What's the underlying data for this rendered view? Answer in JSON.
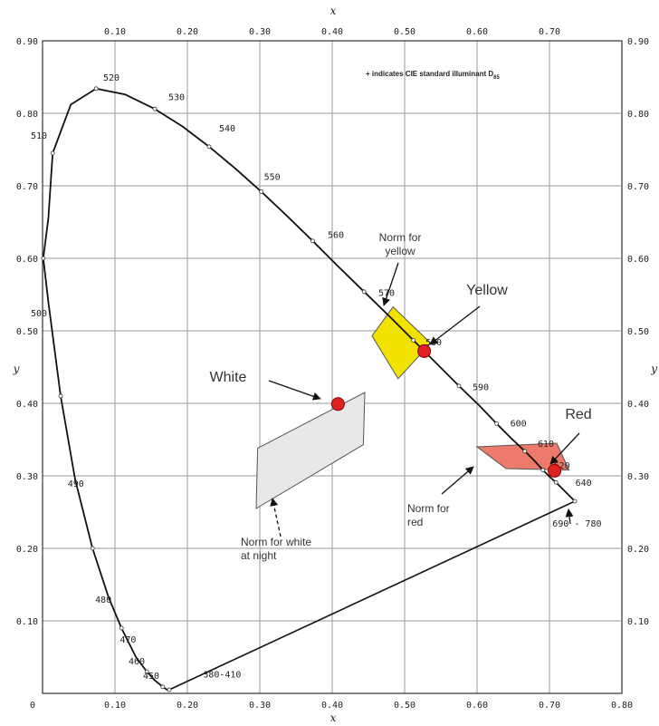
{
  "chart_data": {
    "type": "scatter",
    "xlabel": "x",
    "ylabel": "y",
    "xlim": [
      0,
      0.8
    ],
    "ylim": [
      0,
      0.9
    ],
    "grid": true,
    "x_ticks": [
      "0",
      "0.10",
      "0.20",
      "0.30",
      "0.40",
      "0.50",
      "0.60",
      "0.70",
      "0.80"
    ],
    "x_tick_values": [
      0,
      0.1,
      0.2,
      0.3,
      0.4,
      0.5,
      0.6,
      0.7,
      0.8
    ],
    "y_ticks": [
      "0.10",
      "0.20",
      "0.30",
      "0.40",
      "0.50",
      "0.60",
      "0.70",
      "0.80",
      "0.90"
    ],
    "y_tick_values": [
      0.1,
      0.2,
      0.3,
      0.4,
      0.5,
      0.6,
      0.7,
      0.8,
      0.9
    ],
    "note": "+ indicates CIE standard illuminant D",
    "note_sub": "65",
    "spectral_locus": [
      [
        0.175,
        0.005
      ],
      [
        0.172,
        0.005
      ],
      [
        0.166,
        0.009
      ],
      [
        0.155,
        0.018
      ],
      [
        0.144,
        0.03
      ],
      [
        0.129,
        0.05
      ],
      [
        0.109,
        0.09
      ],
      [
        0.091,
        0.133
      ],
      [
        0.069,
        0.2
      ],
      [
        0.045,
        0.295
      ],
      [
        0.025,
        0.41
      ],
      [
        0.008,
        0.54
      ],
      [
        0.001,
        0.6
      ],
      [
        0.008,
        0.655
      ],
      [
        0.014,
        0.745
      ],
      [
        0.039,
        0.812
      ],
      [
        0.074,
        0.834
      ],
      [
        0.114,
        0.826
      ],
      [
        0.155,
        0.806
      ],
      [
        0.193,
        0.782
      ],
      [
        0.23,
        0.754
      ],
      [
        0.266,
        0.724
      ],
      [
        0.302,
        0.692
      ],
      [
        0.337,
        0.659
      ],
      [
        0.373,
        0.624
      ],
      [
        0.408,
        0.589
      ],
      [
        0.444,
        0.554
      ],
      [
        0.479,
        0.52
      ],
      [
        0.512,
        0.487
      ],
      [
        0.545,
        0.454
      ],
      [
        0.575,
        0.424
      ],
      [
        0.603,
        0.397
      ],
      [
        0.627,
        0.372
      ],
      [
        0.648,
        0.351
      ],
      [
        0.666,
        0.334
      ],
      [
        0.68,
        0.32
      ],
      [
        0.691,
        0.308
      ],
      [
        0.701,
        0.298
      ],
      [
        0.709,
        0.291
      ],
      [
        0.715,
        0.285
      ],
      [
        0.735,
        0.265
      ]
    ],
    "wavelength_labels": [
      {
        "text": "520",
        "x": 0.095,
        "y": 0.845
      },
      {
        "text": "530",
        "x": 0.185,
        "y": 0.818
      },
      {
        "text": "540",
        "x": 0.255,
        "y": 0.775
      },
      {
        "text": "550",
        "x": 0.317,
        "y": 0.708
      },
      {
        "text": "560",
        "x": 0.405,
        "y": 0.628
      },
      {
        "text": "570",
        "x": 0.475,
        "y": 0.548
      },
      {
        "text": "580",
        "x": 0.54,
        "y": 0.48
      },
      {
        "text": "590",
        "x": 0.605,
        "y": 0.418
      },
      {
        "text": "600",
        "x": 0.657,
        "y": 0.368
      },
      {
        "text": "610",
        "x": 0.695,
        "y": 0.34
      },
      {
        "text": "620",
        "x": 0.717,
        "y": 0.31
      },
      {
        "text": "640",
        "x": 0.747,
        "y": 0.286
      },
      {
        "text": "510",
        "x": -0.005,
        "y": 0.765
      },
      {
        "text": "500",
        "x": -0.005,
        "y": 0.52
      },
      {
        "text": "490",
        "x": 0.046,
        "y": 0.285
      },
      {
        "text": "480",
        "x": 0.084,
        "y": 0.125
      },
      {
        "text": "470",
        "x": 0.118,
        "y": 0.07
      },
      {
        "text": "460",
        "x": 0.13,
        "y": 0.04
      },
      {
        "text": "450",
        "x": 0.15,
        "y": 0.02
      },
      {
        "text": "380-410",
        "x": 0.248,
        "y": 0.022
      },
      {
        "text": "690 - 780",
        "x": 0.738,
        "y": 0.23
      }
    ],
    "regions": [
      {
        "name": "yellow",
        "color": "#f2e200",
        "points": [
          [
            0.455,
            0.493
          ],
          [
            0.484,
            0.533
          ],
          [
            0.536,
            0.483
          ],
          [
            0.491,
            0.434
          ]
        ]
      },
      {
        "name": "white",
        "color": "#e8e8e8",
        "points": [
          [
            0.297,
            0.338
          ],
          [
            0.295,
            0.255
          ],
          [
            0.443,
            0.343
          ],
          [
            0.445,
            0.415
          ]
        ]
      },
      {
        "name": "red",
        "color": "#ec7b6b",
        "points": [
          [
            0.6,
            0.34
          ],
          [
            0.71,
            0.345
          ],
          [
            0.727,
            0.308
          ],
          [
            0.64,
            0.31
          ]
        ]
      }
    ],
    "points": [
      {
        "name": "Yellow",
        "x": 0.527,
        "y": 0.472,
        "color": "#dd2222"
      },
      {
        "name": "White",
        "x": 0.408,
        "y": 0.399,
        "color": "#dd2222"
      },
      {
        "name": "Red",
        "x": 0.707,
        "y": 0.307,
        "color": "#dd2222"
      }
    ],
    "annotations": [
      {
        "key": "norm_yellow",
        "lines": [
          "Norm for",
          "yellow"
        ]
      },
      {
        "key": "yellow",
        "lines": [
          "Yellow"
        ]
      },
      {
        "key": "white",
        "lines": [
          "White"
        ]
      },
      {
        "key": "red",
        "lines": [
          "Red"
        ]
      },
      {
        "key": "norm_red",
        "lines": [
          "Norm for",
          "red"
        ]
      },
      {
        "key": "norm_white_night",
        "lines": [
          "Norm for white",
          "at night"
        ]
      }
    ]
  }
}
